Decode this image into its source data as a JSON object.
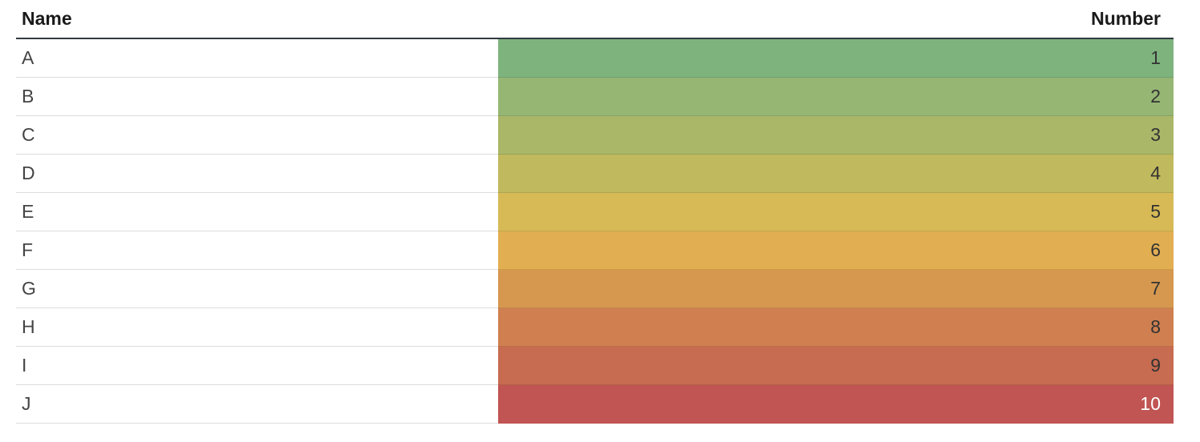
{
  "table": {
    "headers": {
      "name": "Name",
      "number": "Number"
    },
    "rows": [
      {
        "name": "A",
        "number": "1",
        "color": "#7eb37e",
        "border": "#6f9f6f"
      },
      {
        "name": "B",
        "number": "2",
        "color": "#96b674",
        "border": "#85a365"
      },
      {
        "name": "C",
        "number": "3",
        "color": "#aab768",
        "border": "#98a35a"
      },
      {
        "name": "D",
        "number": "4",
        "color": "#c1b95e",
        "border": "#ada552"
      },
      {
        "name": "E",
        "number": "5",
        "color": "#d7ba56",
        "border": "#c0a64a"
      },
      {
        "name": "F",
        "number": "6",
        "color": "#e1af52",
        "border": "#c99c47"
      },
      {
        "name": "G",
        "number": "7",
        "color": "#d6984f",
        "border": "#bf874a"
      },
      {
        "name": "H",
        "number": "8",
        "color": "#cf7f50",
        "border": "#b87148"
      },
      {
        "name": "I",
        "number": "9",
        "color": "#c76b51",
        "border": "#b25f48"
      },
      {
        "name": "J",
        "number": "10",
        "color": "#c05553",
        "border": "#c05553",
        "light_text": true
      }
    ]
  }
}
